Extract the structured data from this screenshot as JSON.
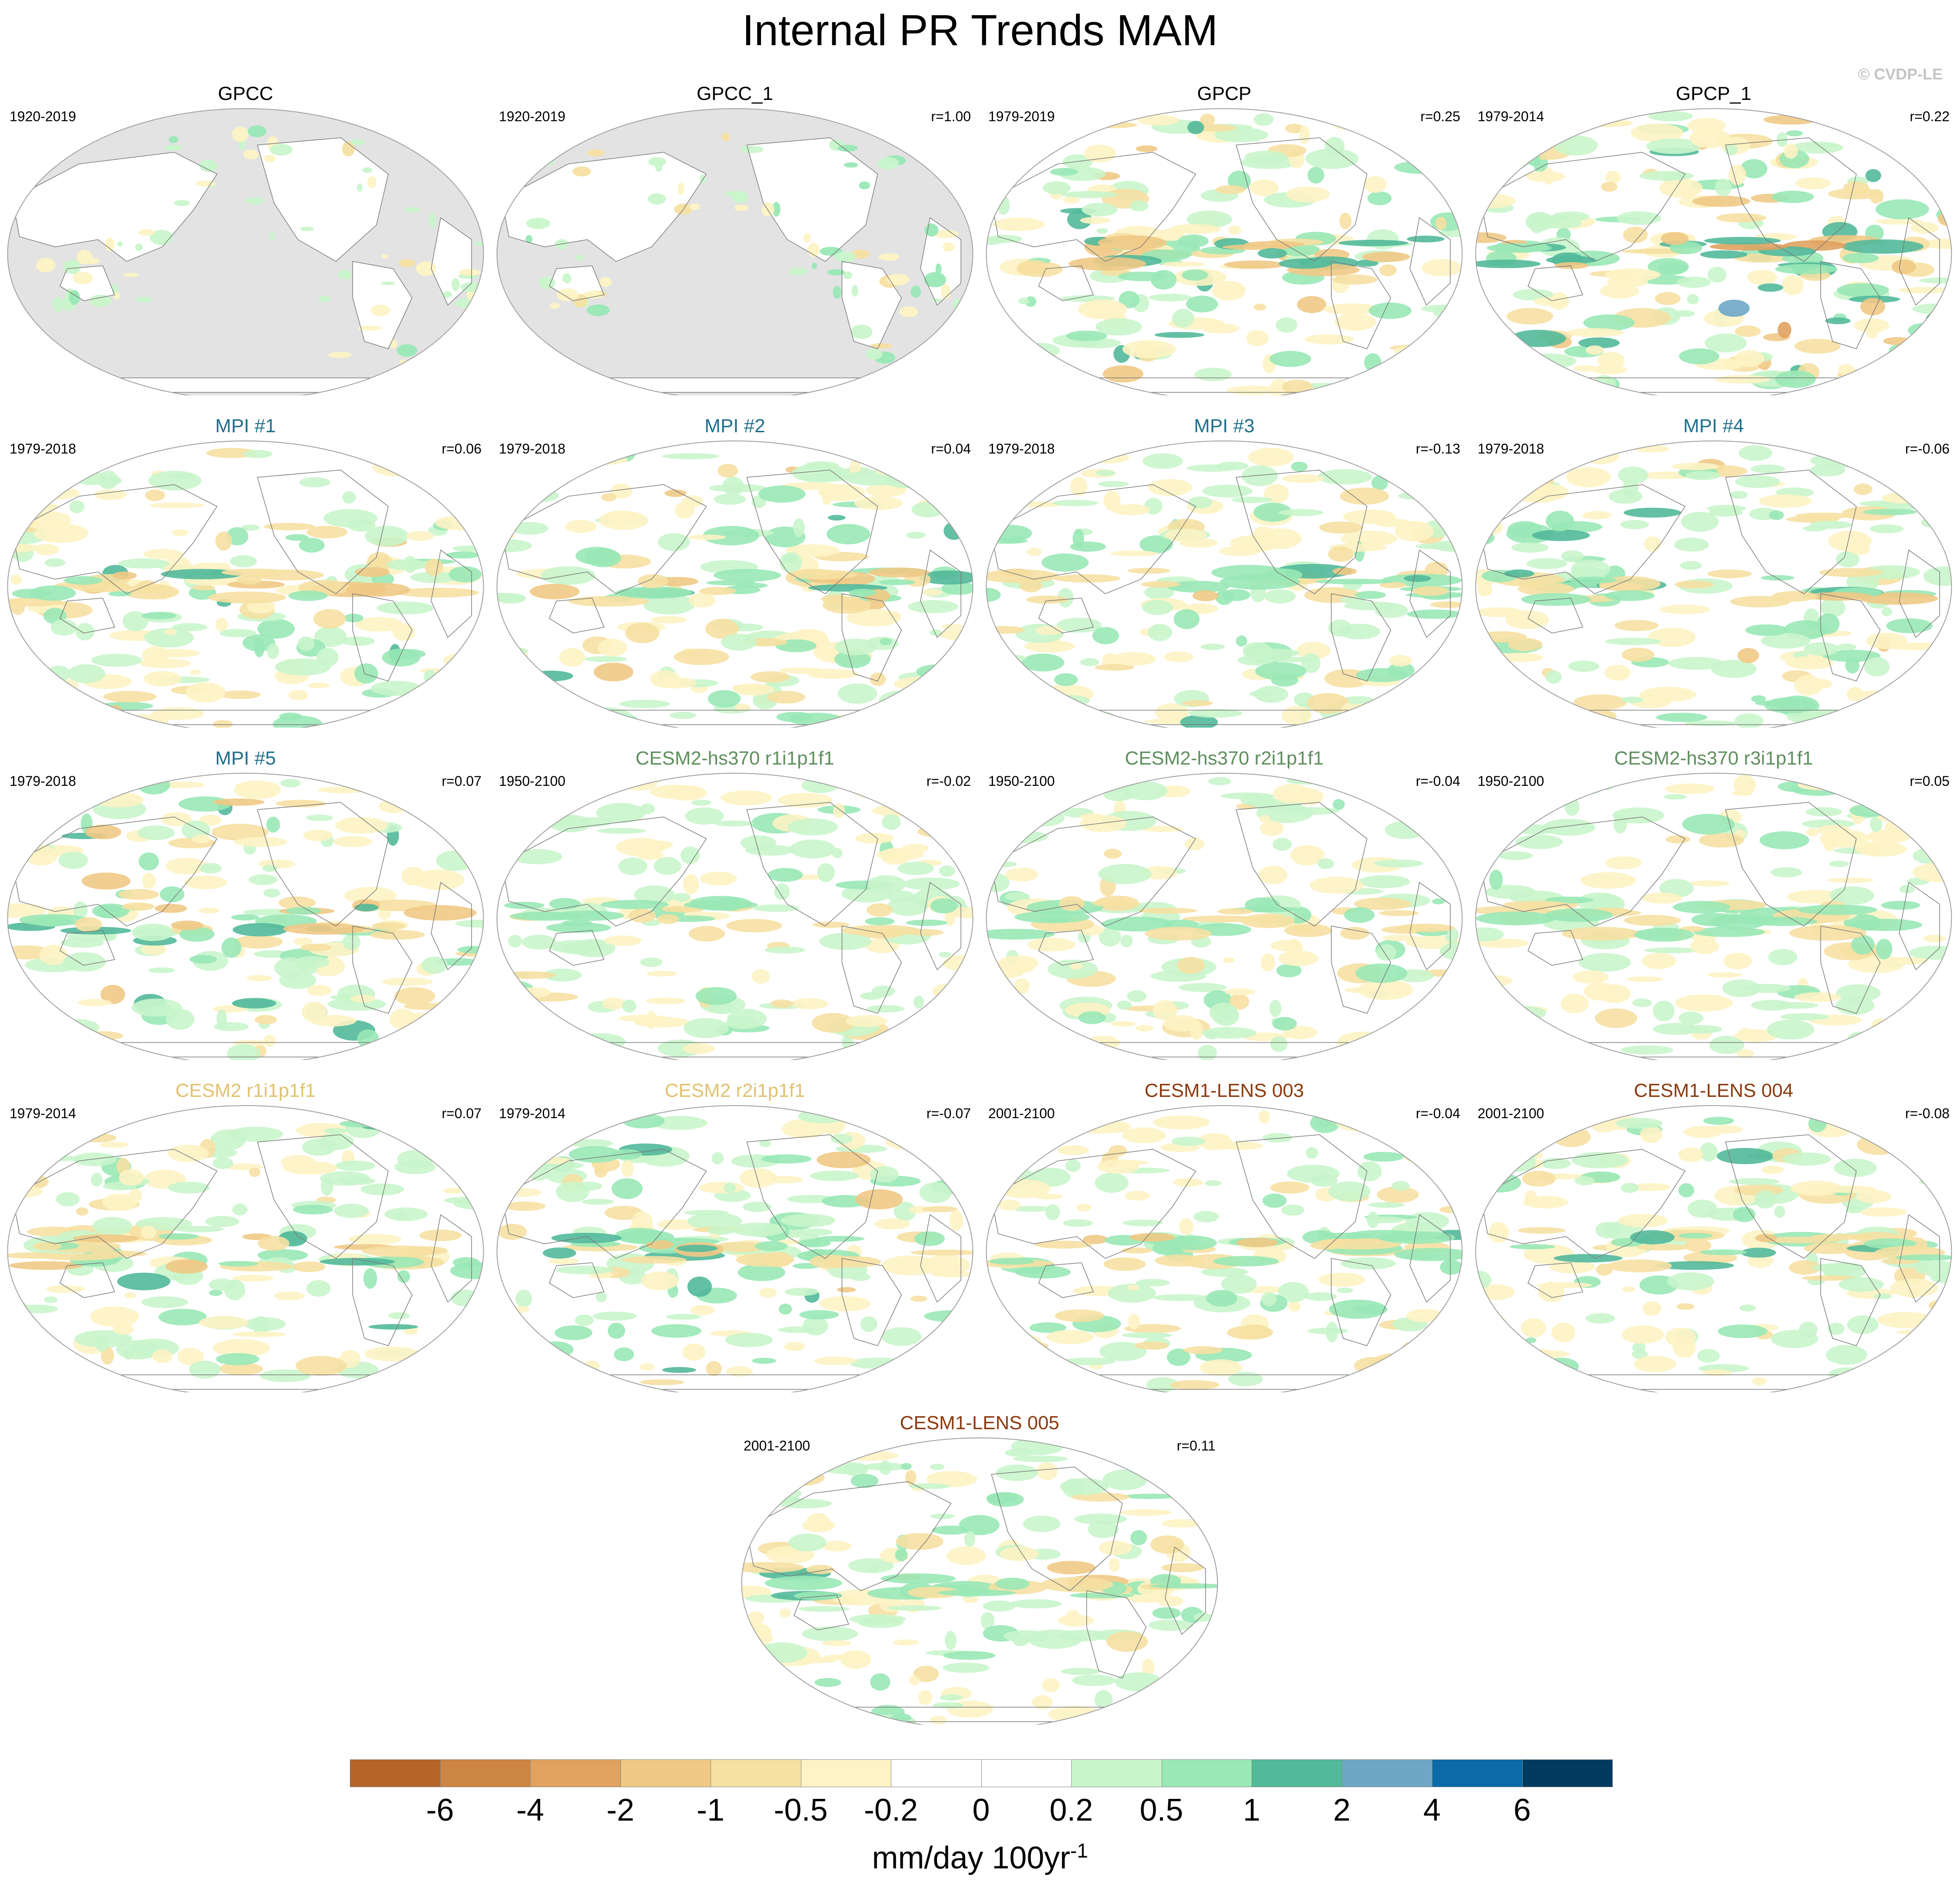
{
  "figure": {
    "title": "Internal PR Trends MAM",
    "credit": "© CVDP-LE"
  },
  "panels": [
    {
      "title": "GPCC",
      "period": "1920-2019",
      "r": "",
      "color": "#000000",
      "type": "land",
      "intensity": 0.35
    },
    {
      "title": "GPCC_1",
      "period": "1920-2019",
      "r": "r=1.00",
      "color": "#000000",
      "type": "land",
      "intensity": 0.35
    },
    {
      "title": "GPCP",
      "period": "1979-2019",
      "r": "r=0.25",
      "color": "#000000",
      "type": "ocean",
      "intensity": 0.75
    },
    {
      "title": "GPCP_1",
      "period": "1979-2014",
      "r": "r=0.22",
      "color": "#000000",
      "type": "ocean",
      "intensity": 0.85
    },
    {
      "title": "MPI #1",
      "period": "1979-2018",
      "r": "r=0.06",
      "color": "#1f6f8b",
      "type": "ocean",
      "intensity": 0.6
    },
    {
      "title": "MPI #2",
      "period": "1979-2018",
      "r": "r=0.04",
      "color": "#1f6f8b",
      "type": "ocean",
      "intensity": 0.65
    },
    {
      "title": "MPI #3",
      "period": "1979-2018",
      "r": "r=-0.13",
      "color": "#1f6f8b",
      "type": "ocean",
      "intensity": 0.55
    },
    {
      "title": "MPI #4",
      "period": "1979-2018",
      "r": "r=-0.06",
      "color": "#1f6f8b",
      "type": "ocean",
      "intensity": 0.6
    },
    {
      "title": "MPI #5",
      "period": "1979-2018",
      "r": "r=0.07",
      "color": "#1f6f8b",
      "type": "ocean",
      "intensity": 0.7
    },
    {
      "title": "CESM2-hs370 r1i1p1f1",
      "period": "1950-2100",
      "r": "r=-0.02",
      "color": "#5f8f5f",
      "type": "ocean",
      "intensity": 0.4
    },
    {
      "title": "CESM2-hs370 r2i1p1f1",
      "period": "1950-2100",
      "r": "r=-0.04",
      "color": "#5f8f5f",
      "type": "ocean",
      "intensity": 0.4
    },
    {
      "title": "CESM2-hs370 r3i1p1f1",
      "period": "1950-2100",
      "r": "r=0.05",
      "color": "#5f8f5f",
      "type": "ocean",
      "intensity": 0.4
    },
    {
      "title": "CESM2 r1i1p1f1",
      "period": "1979-2014",
      "r": "r=0.07",
      "color": "#e2c270",
      "type": "ocean",
      "intensity": 0.6
    },
    {
      "title": "CESM2 r2i1p1f1",
      "period": "1979-2014",
      "r": "r=-0.07",
      "color": "#e2c270",
      "type": "ocean",
      "intensity": 0.6
    },
    {
      "title": "CESM1-LENS 003",
      "period": "2001-2100",
      "r": "r=-0.04",
      "color": "#8b3a0f",
      "type": "ocean",
      "intensity": 0.5
    },
    {
      "title": "CESM1-LENS 004",
      "period": "2001-2100",
      "r": "r=-0.08",
      "color": "#8b3a0f",
      "type": "ocean",
      "intensity": 0.5
    },
    {
      "title": "CESM1-LENS 005",
      "period": "2001-2100",
      "r": "r=0.11",
      "color": "#8b3a0f",
      "type": "ocean",
      "intensity": 0.5
    }
  ],
  "colorbar": {
    "labels": [
      "-6",
      "-4",
      "-2",
      "-1",
      "-0.5",
      "-0.2",
      "0",
      "0.2",
      "0.5",
      "1",
      "2",
      "4",
      "6"
    ],
    "colors": [
      "#b5652a",
      "#cd8543",
      "#dfa25f",
      "#f0c985",
      "#f6e0a2",
      "#fdf3c4",
      "#ffffff",
      "#ffffff",
      "#c9f5cb",
      "#99e8b6",
      "#52b99a",
      "#6ea7c6",
      "#0b6aa8",
      "#003a5e"
    ],
    "units": "mm/day 100yr",
    "units_exp": "-1"
  }
}
